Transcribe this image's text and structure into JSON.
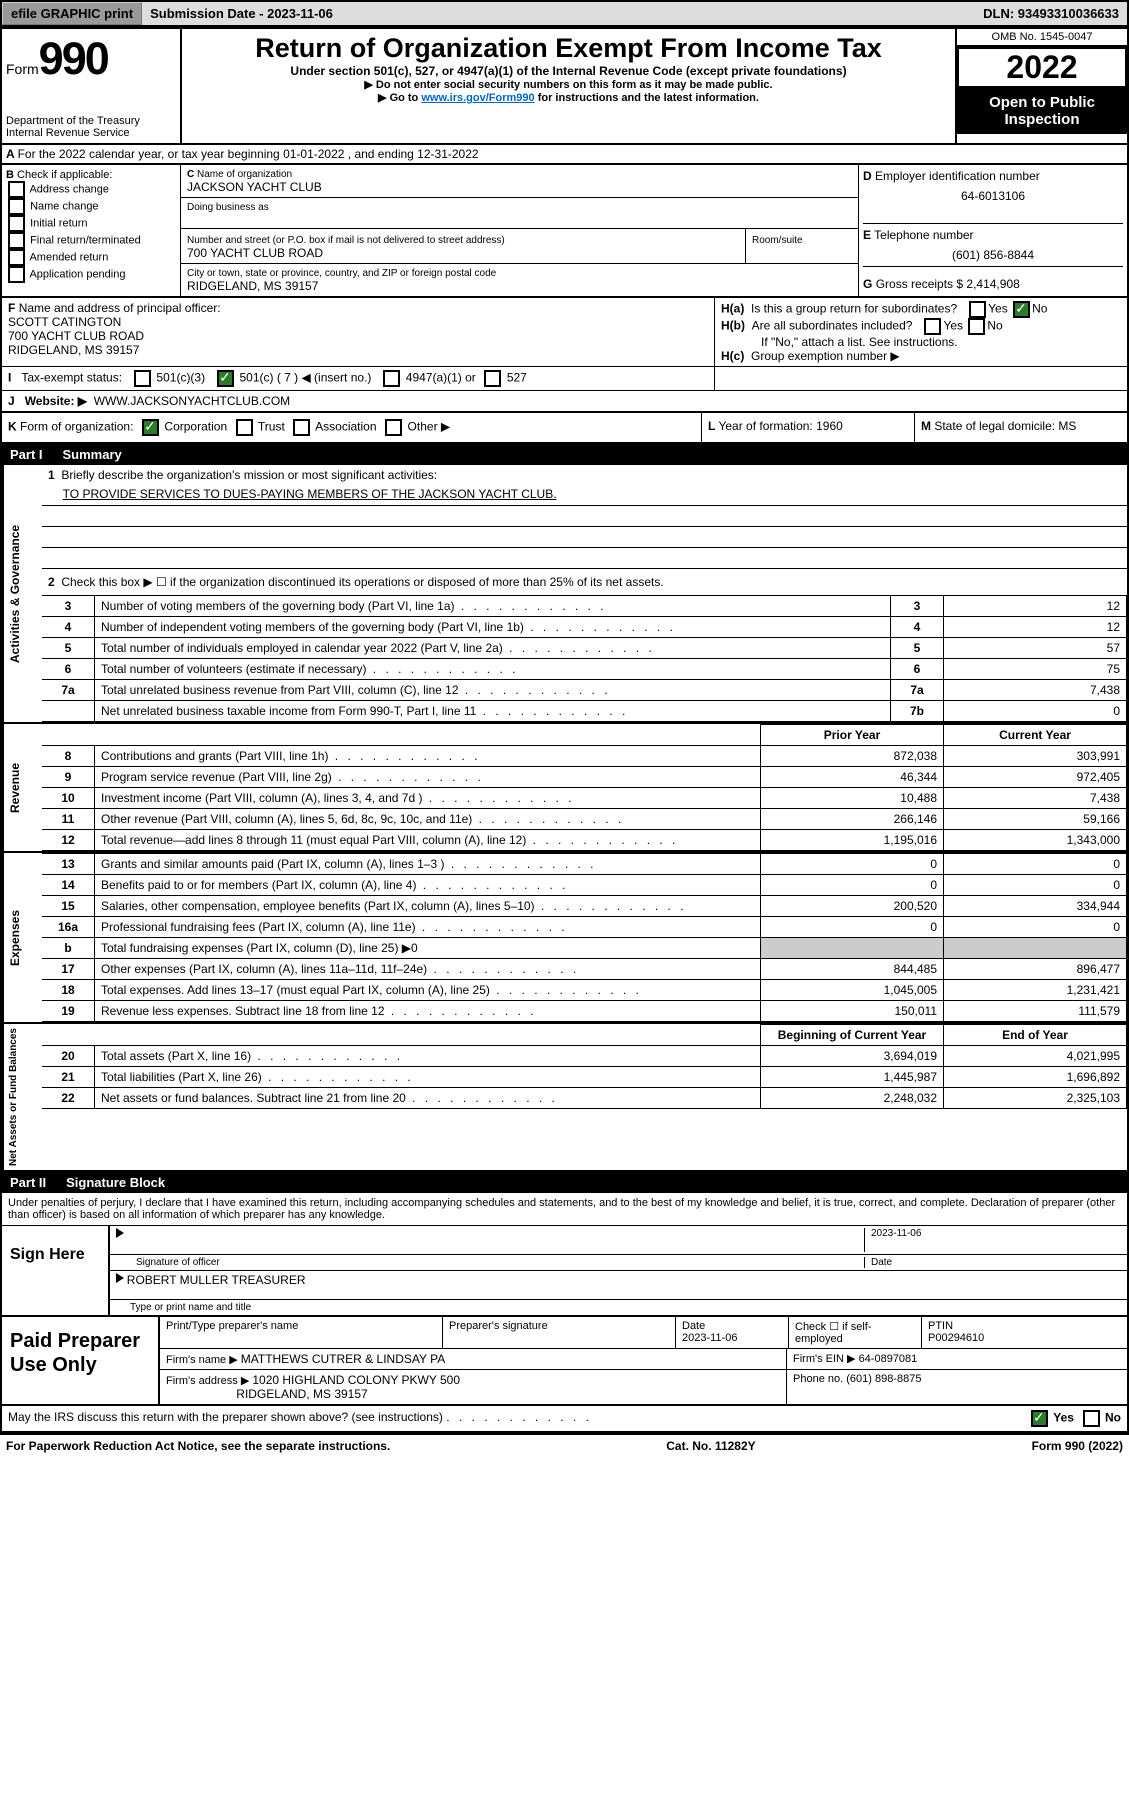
{
  "topbar": {
    "efile": "efile GRAPHIC print",
    "submission_label": "Submission Date - 2023-11-06",
    "dln": "DLN: 93493310036633"
  },
  "header": {
    "form_label": "Form",
    "form_num": "990",
    "dept": "Department of the Treasury",
    "irs": "Internal Revenue Service",
    "title": "Return of Organization Exempt From Income Tax",
    "subtitle": "Under section 501(c), 527, or 4947(a)(1) of the Internal Revenue Code (except private foundations)",
    "note1": "▶ Do not enter social security numbers on this form as it may be made public.",
    "note2_pre": "▶ Go to ",
    "note2_link": "www.irs.gov/Form990",
    "note2_post": " for instructions and the latest information.",
    "omb": "OMB No. 1545-0047",
    "year": "2022",
    "open": "Open to Public Inspection"
  },
  "sectionA": {
    "text": "For the 2022 calendar year, or tax year beginning 01-01-2022   , and ending 12-31-2022",
    "prefix": "A"
  },
  "sectionB": {
    "label": "Check if applicable:",
    "items": [
      "Address change",
      "Name change",
      "Initial return",
      "Final return/terminated",
      "Amended return",
      "Application pending"
    ]
  },
  "sectionC": {
    "name_label": "Name of organization",
    "name": "JACKSON YACHT CLUB",
    "dba_label": "Doing business as",
    "dba": "",
    "addr_label": "Number and street (or P.O. box if mail is not delivered to street address)",
    "room_label": "Room/suite",
    "addr": "700 YACHT CLUB ROAD",
    "city_label": "City or town, state or province, country, and ZIP or foreign postal code",
    "city": "RIDGELAND, MS  39157"
  },
  "sectionD": {
    "label": "Employer identification number",
    "ein": "64-6013106"
  },
  "sectionE": {
    "label": "Telephone number",
    "phone": "(601) 856-8844"
  },
  "sectionG": {
    "label": "Gross receipts $",
    "val": "2,414,908"
  },
  "sectionF": {
    "label": "Name and address of principal officer:",
    "name": "SCOTT CATINGTON",
    "addr1": "700 YACHT CLUB ROAD",
    "addr2": "RIDGELAND, MS  39157"
  },
  "sectionH": {
    "a": "Is this a group return for subordinates?",
    "a_yes": "Yes",
    "a_no": "No",
    "b": "Are all subordinates included?",
    "b_yes": "Yes",
    "b_no": "No",
    "b_note": "If \"No,\" attach a list. See instructions.",
    "c": "Group exemption number ▶"
  },
  "sectionI": {
    "label": "Tax-exempt status:",
    "opts": [
      "501(c)(3)",
      "501(c) ( 7 ) ◀ (insert no.)",
      "4947(a)(1) or",
      "527"
    ]
  },
  "sectionJ": {
    "label": "Website: ▶",
    "val": "WWW.JACKSONYACHTCLUB.COM"
  },
  "sectionK": {
    "label": "Form of organization:",
    "opts": [
      "Corporation",
      "Trust",
      "Association",
      "Other ▶"
    ]
  },
  "sectionL": {
    "label": "Year of formation:",
    "val": "1960"
  },
  "sectionM": {
    "label": "State of legal domicile:",
    "val": "MS"
  },
  "part1": {
    "num": "Part I",
    "title": "Summary"
  },
  "summary": {
    "gov_label": "Activities & Governance",
    "rev_label": "Revenue",
    "exp_label": "Expenses",
    "net_label": "Net Assets or Fund Balances",
    "line1_label": "Briefly describe the organization's mission or most significant activities:",
    "line1_text": "TO PROVIDE SERVICES TO DUES-PAYING MEMBERS OF THE JACKSON YACHT CLUB.",
    "line2": "Check this box ▶ ☐  if the organization discontinued its operations or disposed of more than 25% of its net assets.",
    "rows": [
      {
        "n": "3",
        "d": "Number of voting members of the governing body (Part VI, line 1a)",
        "k": "3",
        "v": "12"
      },
      {
        "n": "4",
        "d": "Number of independent voting members of the governing body (Part VI, line 1b)",
        "k": "4",
        "v": "12"
      },
      {
        "n": "5",
        "d": "Total number of individuals employed in calendar year 2022 (Part V, line 2a)",
        "k": "5",
        "v": "57"
      },
      {
        "n": "6",
        "d": "Total number of volunteers (estimate if necessary)",
        "k": "6",
        "v": "75"
      },
      {
        "n": "7a",
        "d": "Total unrelated business revenue from Part VIII, column (C), line 12",
        "k": "7a",
        "v": "7,438"
      },
      {
        "n": "",
        "d": "Net unrelated business taxable income from Form 990-T, Part I, line 11",
        "k": "7b",
        "v": "0"
      }
    ],
    "prior_label": "Prior Year",
    "current_label": "Current Year",
    "rows2": [
      {
        "n": "8",
        "d": "Contributions and grants (Part VIII, line 1h)",
        "p": "872,038",
        "c": "303,991"
      },
      {
        "n": "9",
        "d": "Program service revenue (Part VIII, line 2g)",
        "p": "46,344",
        "c": "972,405"
      },
      {
        "n": "10",
        "d": "Investment income (Part VIII, column (A), lines 3, 4, and 7d )",
        "p": "10,488",
        "c": "7,438"
      },
      {
        "n": "11",
        "d": "Other revenue (Part VIII, column (A), lines 5, 6d, 8c, 9c, 10c, and 11e)",
        "p": "266,146",
        "c": "59,166"
      },
      {
        "n": "12",
        "d": "Total revenue—add lines 8 through 11 (must equal Part VIII, column (A), line 12)",
        "p": "1,195,016",
        "c": "1,343,000"
      }
    ],
    "rows3": [
      {
        "n": "13",
        "d": "Grants and similar amounts paid (Part IX, column (A), lines 1–3 )",
        "p": "0",
        "c": "0"
      },
      {
        "n": "14",
        "d": "Benefits paid to or for members (Part IX, column (A), line 4)",
        "p": "0",
        "c": "0"
      },
      {
        "n": "15",
        "d": "Salaries, other compensation, employee benefits (Part IX, column (A), lines 5–10)",
        "p": "200,520",
        "c": "334,944"
      },
      {
        "n": "16a",
        "d": "Professional fundraising fees (Part IX, column (A), line 11e)",
        "p": "0",
        "c": "0"
      },
      {
        "n": "b",
        "d": "Total fundraising expenses (Part IX, column (D), line 25) ▶0",
        "p": "",
        "c": ""
      },
      {
        "n": "17",
        "d": "Other expenses (Part IX, column (A), lines 11a–11d, 11f–24e)",
        "p": "844,485",
        "c": "896,477"
      },
      {
        "n": "18",
        "d": "Total expenses. Add lines 13–17 (must equal Part IX, column (A), line 25)",
        "p": "1,045,005",
        "c": "1,231,421"
      },
      {
        "n": "19",
        "d": "Revenue less expenses. Subtract line 18 from line 12",
        "p": "150,011",
        "c": "111,579"
      }
    ],
    "begin_label": "Beginning of Current Year",
    "end_label": "End of Year",
    "rows4": [
      {
        "n": "20",
        "d": "Total assets (Part X, line 16)",
        "p": "3,694,019",
        "c": "4,021,995"
      },
      {
        "n": "21",
        "d": "Total liabilities (Part X, line 26)",
        "p": "1,445,987",
        "c": "1,696,892"
      },
      {
        "n": "22",
        "d": "Net assets or fund balances. Subtract line 21 from line 20",
        "p": "2,248,032",
        "c": "2,325,103"
      }
    ]
  },
  "part2": {
    "num": "Part II",
    "title": "Signature Block"
  },
  "sig": {
    "declaration": "Under penalties of perjury, I declare that I have examined this return, including accompanying schedules and statements, and to the best of my knowledge and belief, it is true, correct, and complete. Declaration of preparer (other than officer) is based on all information of which preparer has any knowledge.",
    "sign_here": "Sign Here",
    "sig_of_officer": "Signature of officer",
    "date_label": "Date",
    "date": "2023-11-06",
    "officer_name": "ROBERT MULLER  TREASURER",
    "type_label": "Type or print name and title"
  },
  "paid": {
    "label": "Paid Preparer Use Only",
    "h1": "Print/Type preparer's name",
    "h2": "Preparer's signature",
    "h3": "Date",
    "h3v": "2023-11-06",
    "h4": "Check ☐ if self-employed",
    "h5": "PTIN",
    "h5v": "P00294610",
    "firm_name_label": "Firm's name    ▶",
    "firm_name": "MATTHEWS CUTRER & LINDSAY PA",
    "firm_ein_label": "Firm's EIN ▶",
    "firm_ein": "64-0897081",
    "firm_addr_label": "Firm's address ▶",
    "firm_addr1": "1020 HIGHLAND COLONY PKWY 500",
    "firm_addr2": "RIDGELAND, MS  39157",
    "phone_label": "Phone no.",
    "phone": "(601) 898-8875",
    "discuss": "May the IRS discuss this return with the preparer shown above? (see instructions)",
    "yes": "Yes",
    "no": "No"
  },
  "footer": {
    "left": "For Paperwork Reduction Act Notice, see the separate instructions.",
    "mid": "Cat. No. 11282Y",
    "right": "Form 990 (2022)"
  }
}
